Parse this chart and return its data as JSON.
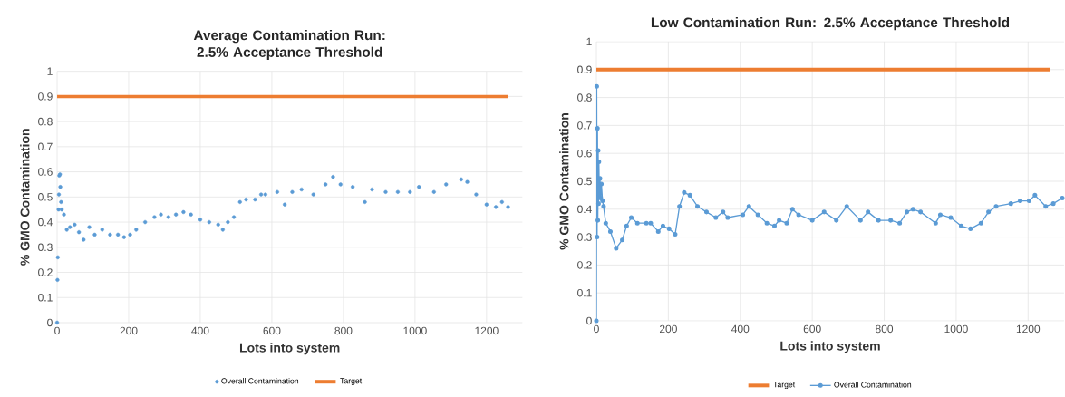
{
  "chart_data": [
    {
      "type": "scatter",
      "title": "Average Contamination Run: 2.5% Acceptance Threshold",
      "xlabel": "Lots into system",
      "ylabel": "% GMO Contamination",
      "xlim": [
        0,
        1300
      ],
      "ylim": [
        0,
        1
      ],
      "xticks": [
        0,
        200,
        400,
        600,
        800,
        1000,
        1200
      ],
      "yticks": [
        0,
        0.1,
        0.2,
        0.3,
        0.4,
        0.5,
        0.6,
        0.7,
        0.8,
        0.9,
        1
      ],
      "grid": true,
      "legend": "bottom",
      "marker": "circle",
      "series": [
        {
          "name": "Overall Contamination",
          "color": "#5b9bd5",
          "x": [
            0,
            1,
            2,
            4,
            5,
            6,
            8,
            9,
            11,
            13,
            19,
            27,
            36,
            49,
            61,
            74,
            90,
            105,
            126,
            148,
            170,
            187,
            204,
            221,
            246,
            272,
            290,
            311,
            332,
            353,
            374,
            400,
            425,
            450,
            463,
            477,
            494,
            511,
            528,
            553,
            570,
            582,
            615,
            636,
            657,
            683,
            716,
            750,
            771,
            792,
            826,
            860,
            880,
            918,
            952,
            986,
            1011,
            1053,
            1087,
            1129,
            1146,
            1171,
            1200,
            1226,
            1243,
            1260
          ],
          "values": [
            0,
            0.17,
            0.26,
            0.45,
            0.51,
            0.585,
            0.59,
            0.54,
            0.48,
            0.45,
            0.43,
            0.37,
            0.38,
            0.39,
            0.36,
            0.33,
            0.38,
            0.35,
            0.37,
            0.35,
            0.35,
            0.34,
            0.35,
            0.37,
            0.4,
            0.42,
            0.43,
            0.42,
            0.43,
            0.44,
            0.43,
            0.41,
            0.4,
            0.39,
            0.37,
            0.4,
            0.42,
            0.48,
            0.49,
            0.49,
            0.51,
            0.51,
            0.52,
            0.47,
            0.52,
            0.53,
            0.51,
            0.55,
            0.58,
            0.55,
            0.54,
            0.48,
            0.53,
            0.52,
            0.52,
            0.52,
            0.54,
            0.52,
            0.55,
            0.57,
            0.56,
            0.51,
            0.47,
            0.46,
            0.48,
            0.46
          ]
        },
        {
          "name": "Target",
          "type": "line",
          "marker": "none",
          "color": "#ed7d31",
          "x": [
            0,
            1260
          ],
          "values": [
            0.9,
            0.9
          ]
        }
      ]
    },
    {
      "type": "line",
      "title": "Low Contamination Run: 2.5% Acceptance Threshold",
      "xlabel": "Lots into system",
      "ylabel": "% GMO Contamination",
      "xlim": [
        0,
        1300
      ],
      "ylim": [
        0,
        1
      ],
      "xticks": [
        0,
        200,
        400,
        600,
        800,
        1000,
        1200
      ],
      "yticks": [
        0,
        0.1,
        0.2,
        0.3,
        0.4,
        0.5,
        0.6,
        0.7,
        0.8,
        0.9,
        1
      ],
      "grid": true,
      "legend": "bottom",
      "marker": "circle",
      "series": [
        {
          "name": "Target",
          "marker": "none",
          "color": "#ed7d31",
          "x": [
            0,
            1260
          ],
          "values": [
            0.9,
            0.9
          ]
        },
        {
          "name": "Overall Contamination",
          "color": "#5b9bd5",
          "x": [
            0,
            1,
            2,
            3,
            4,
            5,
            6,
            7,
            8,
            10,
            12,
            14,
            17,
            20,
            26,
            39,
            55,
            72,
            84,
            97,
            114,
            139,
            151,
            172,
            185,
            202,
            219,
            231,
            244,
            260,
            281,
            306,
            332,
            352,
            365,
            407,
            424,
            449,
            474,
            495,
            508,
            529,
            545,
            562,
            600,
            633,
            667,
            696,
            734,
            755,
            784,
            818,
            843,
            863,
            880,
            901,
            943,
            956,
            985,
            1014,
            1040,
            1069,
            1090,
            1111,
            1152,
            1178,
            1203,
            1219,
            1249,
            1270,
            1295
          ],
          "values": [
            0,
            0.84,
            0.3,
            0.69,
            0.36,
            0.61,
            0.42,
            0.57,
            0.45,
            0.51,
            0.44,
            0.49,
            0.43,
            0.41,
            0.35,
            0.32,
            0.26,
            0.29,
            0.34,
            0.37,
            0.35,
            0.35,
            0.35,
            0.32,
            0.34,
            0.33,
            0.31,
            0.41,
            0.46,
            0.45,
            0.41,
            0.39,
            0.37,
            0.39,
            0.37,
            0.38,
            0.41,
            0.38,
            0.35,
            0.34,
            0.36,
            0.35,
            0.4,
            0.38,
            0.36,
            0.39,
            0.36,
            0.41,
            0.36,
            0.39,
            0.36,
            0.36,
            0.35,
            0.39,
            0.4,
            0.39,
            0.35,
            0.38,
            0.37,
            0.34,
            0.33,
            0.35,
            0.39,
            0.41,
            0.42,
            0.43,
            0.43,
            0.45,
            0.41,
            0.42,
            0.44
          ]
        }
      ]
    }
  ]
}
